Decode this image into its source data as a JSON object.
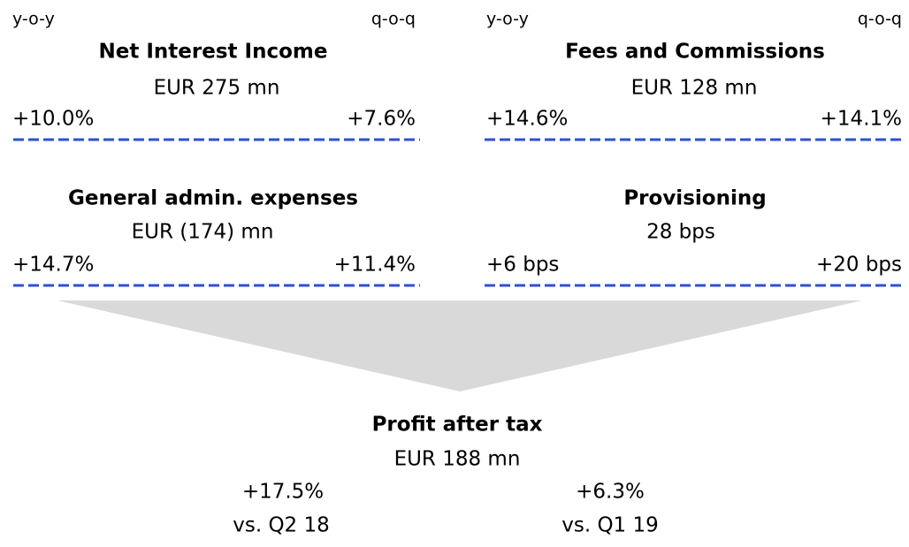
{
  "column_labels": [
    {
      "yoy": "y-o-y",
      "qoq": "q-o-q"
    },
    {
      "yoy": "y-o-y",
      "qoq": "q-o-q"
    }
  ],
  "panels": [
    {
      "title": "Net Interest Income",
      "value": "EUR 275 mn",
      "yoy": "+10.0%",
      "qoq": "+7.6%"
    },
    {
      "title": "Fees and Commissions",
      "value": "EUR 128 mn",
      "yoy": "+14.6%",
      "qoq": "+14.1%"
    },
    {
      "title": "General admin. expenses",
      "value": "EUR (174) mn",
      "yoy": "+14.7%",
      "qoq": "+11.4%"
    },
    {
      "title": "Provisioning",
      "value": "28 bps",
      "yoy": "+6 bps",
      "qoq": "+20 bps"
    }
  ],
  "profit": {
    "title": "Profit after tax",
    "value": "EUR 188 mn",
    "yoy": "+17.5%",
    "qoq": "+6.3%",
    "yoy_note": "vs. Q2 18",
    "qoq_note": "vs. Q1 19"
  }
}
